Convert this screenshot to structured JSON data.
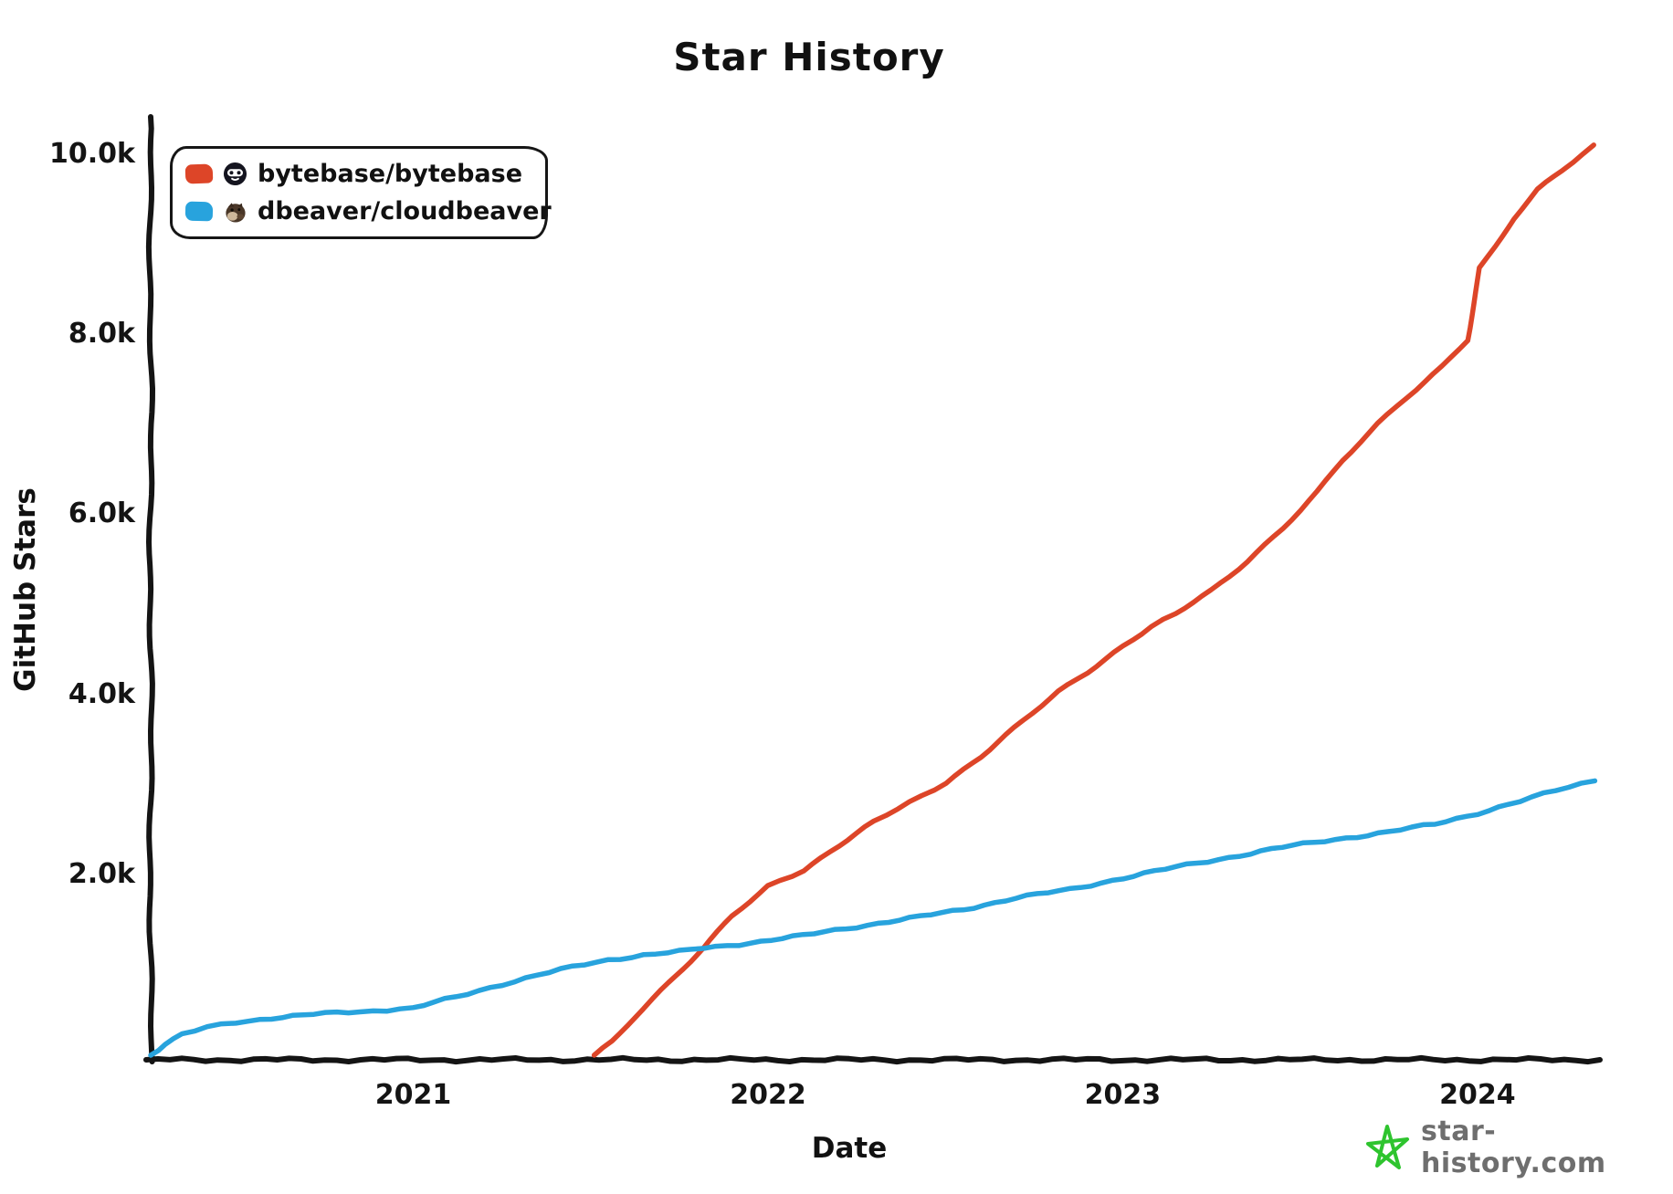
{
  "title": "Star History",
  "legend": [
    {
      "repo": "bytebase/bytebase",
      "color": "#dd4528",
      "icon": "bytebase-avatar"
    },
    {
      "repo": "dbeaver/cloudbeaver",
      "color": "#28a3dd",
      "icon": "beaver-avatar"
    }
  ],
  "watermark": {
    "text": "star-history.com",
    "star_color": "#2ec42e",
    "text_color": "#6e6e6e"
  },
  "chart_data": {
    "type": "line",
    "title": "Star History",
    "xlabel": "Date",
    "ylabel": "GitHub Stars",
    "xlim": [
      2020.26,
      2024.34
    ],
    "ylim": [
      0,
      10000
    ],
    "grid": false,
    "legend_position": "top-left",
    "axis_color": "#141414",
    "x_ticks": [
      {
        "value": 2021,
        "label": "2021"
      },
      {
        "value": 2022,
        "label": "2022"
      },
      {
        "value": 2023,
        "label": "2023"
      },
      {
        "value": 2024,
        "label": "2024"
      }
    ],
    "y_ticks": [
      {
        "value": 2000,
        "label": "2.0k"
      },
      {
        "value": 4000,
        "label": "4.0k"
      },
      {
        "value": 6000,
        "label": "6.0k"
      },
      {
        "value": 8000,
        "label": "8.0k"
      },
      {
        "value": 10000,
        "label": "10.0k"
      }
    ],
    "series": [
      {
        "name": "bytebase/bytebase",
        "color": "#dd4528",
        "points": [
          [
            2021.51,
            0
          ],
          [
            2021.56,
            160
          ],
          [
            2021.62,
            420
          ],
          [
            2021.7,
            730
          ],
          [
            2021.76,
            960
          ],
          [
            2021.82,
            1190
          ],
          [
            2021.9,
            1540
          ],
          [
            2022.0,
            1880
          ],
          [
            2022.1,
            2060
          ],
          [
            2022.2,
            2330
          ],
          [
            2022.3,
            2590
          ],
          [
            2022.4,
            2810
          ],
          [
            2022.5,
            3030
          ],
          [
            2022.6,
            3320
          ],
          [
            2022.72,
            3710
          ],
          [
            2022.82,
            4040
          ],
          [
            2022.9,
            4260
          ],
          [
            2023.0,
            4550
          ],
          [
            2023.08,
            4760
          ],
          [
            2023.15,
            4900
          ],
          [
            2023.25,
            5160
          ],
          [
            2023.35,
            5490
          ],
          [
            2023.45,
            5860
          ],
          [
            2023.55,
            6260
          ],
          [
            2023.62,
            6600
          ],
          [
            2023.72,
            7010
          ],
          [
            2023.8,
            7310
          ],
          [
            2023.9,
            7660
          ],
          [
            2023.97,
            7950
          ],
          [
            2024.005,
            8750
          ],
          [
            2024.05,
            9000
          ],
          [
            2024.1,
            9300
          ],
          [
            2024.17,
            9620
          ],
          [
            2024.24,
            9830
          ],
          [
            2024.33,
            10100
          ]
        ]
      },
      {
        "name": "dbeaver/cloudbeaver",
        "color": "#28a3dd",
        "points": [
          [
            2020.26,
            0
          ],
          [
            2020.3,
            120
          ],
          [
            2020.35,
            230
          ],
          [
            2020.42,
            310
          ],
          [
            2020.5,
            365
          ],
          [
            2020.6,
            415
          ],
          [
            2020.72,
            455
          ],
          [
            2020.85,
            485
          ],
          [
            2021.0,
            525
          ],
          [
            2021.12,
            645
          ],
          [
            2021.25,
            790
          ],
          [
            2021.35,
            890
          ],
          [
            2021.45,
            980
          ],
          [
            2021.55,
            1060
          ],
          [
            2021.65,
            1115
          ],
          [
            2021.75,
            1150
          ],
          [
            2021.82,
            1190
          ],
          [
            2021.95,
            1250
          ],
          [
            2022.1,
            1330
          ],
          [
            2022.25,
            1430
          ],
          [
            2022.4,
            1520
          ],
          [
            2022.55,
            1620
          ],
          [
            2022.7,
            1750
          ],
          [
            2022.85,
            1840
          ],
          [
            2023.0,
            1970
          ],
          [
            2023.15,
            2090
          ],
          [
            2023.3,
            2200
          ],
          [
            2023.45,
            2310
          ],
          [
            2023.6,
            2400
          ],
          [
            2023.75,
            2480
          ],
          [
            2023.88,
            2570
          ],
          [
            2024.0,
            2690
          ],
          [
            2024.12,
            2820
          ],
          [
            2024.22,
            2940
          ],
          [
            2024.33,
            3060
          ]
        ]
      }
    ]
  }
}
